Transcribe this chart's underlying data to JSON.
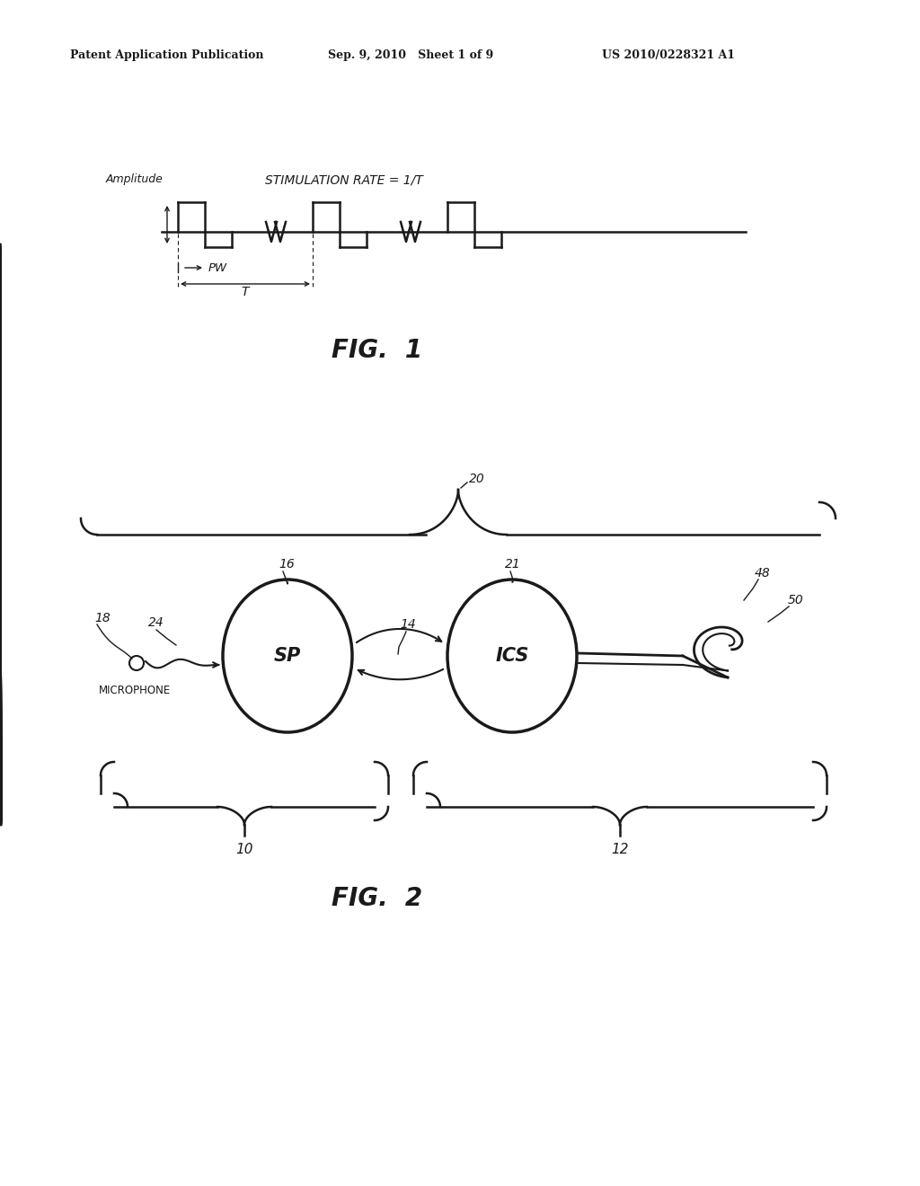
{
  "bg_color": "#ffffff",
  "header_left": "Patent Application Publication",
  "header_mid": "Sep. 9, 2010   Sheet 1 of 9",
  "header_right": "US 2010/0228321 A1",
  "fig1_title": "FIG.  1",
  "fig2_title": "FIG.  2",
  "fig1_label_amplitude": "Amplitude",
  "fig1_label_stim_rate": "STIMULATION RATE = 1/T",
  "fig1_label_pw": "PW",
  "fig1_label_T": "T",
  "fig2_label_20": "20",
  "fig2_label_16": "16",
  "fig2_label_21": "21",
  "fig2_label_14": "14",
  "fig2_label_18": "18",
  "fig2_label_24": "24",
  "fig2_label_48": "48",
  "fig2_label_50": "50",
  "fig2_label_10": "10",
  "fig2_label_12": "12",
  "fig2_label_microphone": "MICROPHONE",
  "fig2_label_SP": "SP",
  "fig2_label_ICS": "ICS"
}
